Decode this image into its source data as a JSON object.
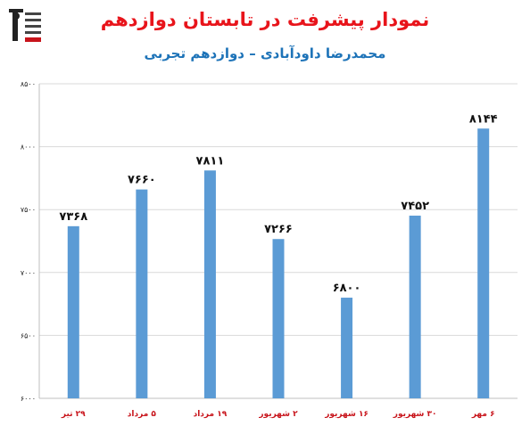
{
  "chart_data": {
    "type": "bar",
    "title": "نمودار پیشرفت در تابستان دوازدهم",
    "subtitle": "محمدرضا داودآبادی – دوازدهم تجربی",
    "categories": [
      "۲۹ تیر",
      "۵ مرداد",
      "۱۹ مرداد",
      "۲ شهریور",
      "۱۶ شهریور",
      "۳۰ شهریور",
      "۶ مهر"
    ],
    "values": [
      7368,
      7660,
      7811,
      7266,
      6800,
      7452,
      8144
    ],
    "value_labels": [
      "۷۳۶۸",
      "۷۶۶۰",
      "۷۸۱۱",
      "۷۲۶۶",
      "۶۸۰۰",
      "۷۴۵۲",
      "۸۱۴۴"
    ],
    "y_ticks": [
      6000,
      6500,
      7000,
      7500,
      8000,
      8500
    ],
    "y_tick_labels": [
      "۶۰۰۰",
      "۶۵۰۰",
      "۷۰۰۰",
      "۷۵۰۰",
      "۸۰۰۰",
      "۸۵۰۰"
    ],
    "ylim": [
      6000,
      8500
    ],
    "bar_color": "#5b9bd5",
    "title_color": "#e8141b",
    "subtitle_color": "#1d73b8",
    "category_label_color": "#c8141b",
    "grid": true
  }
}
